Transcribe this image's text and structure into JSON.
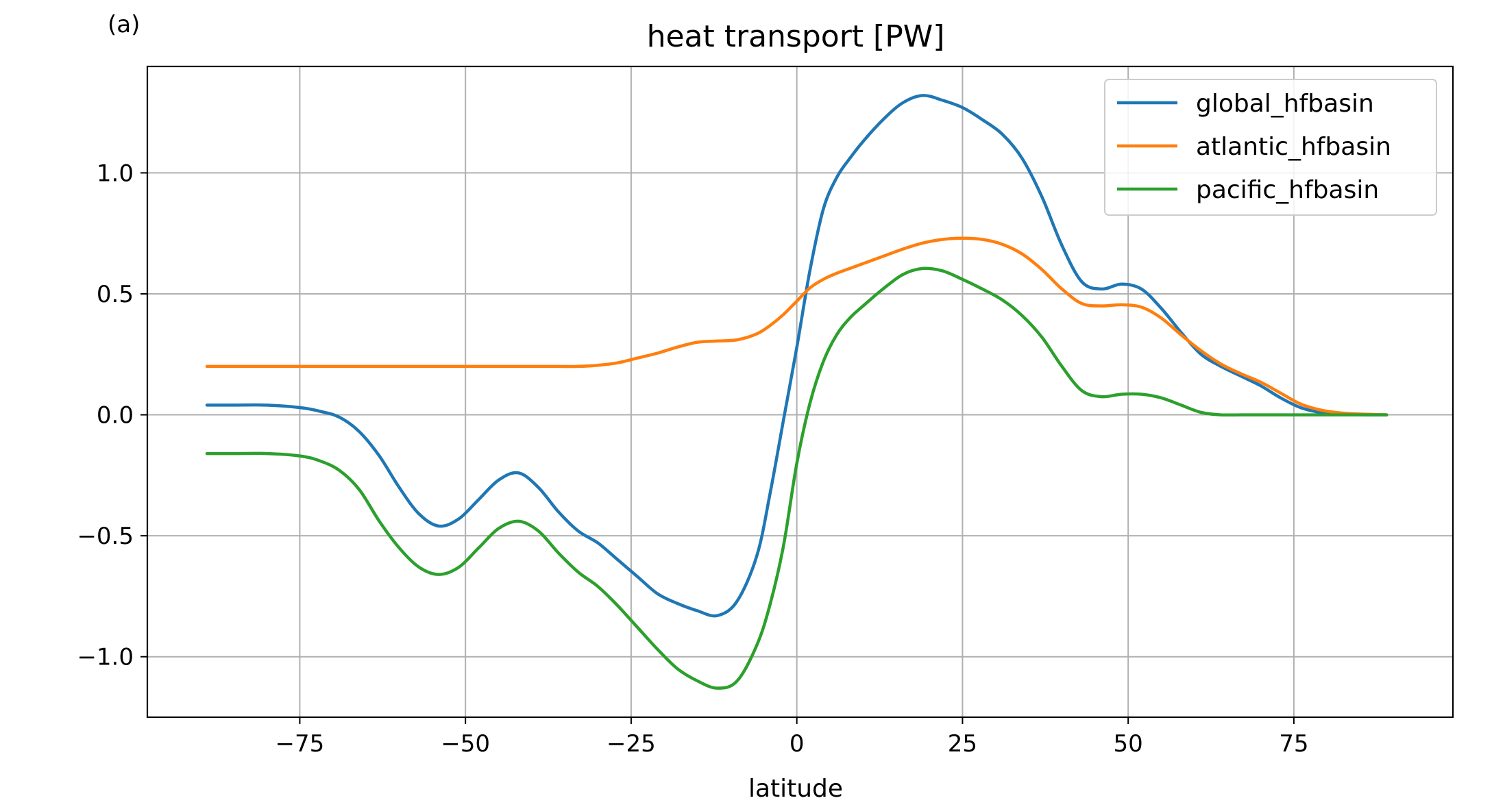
{
  "panel_label": "(a)",
  "chart_data": {
    "type": "line",
    "title": "heat transport [PW]",
    "xlabel": "latitude",
    "ylabel": "",
    "xlim": [
      -98,
      99
    ],
    "ylim": [
      -1.25,
      1.44
    ],
    "xticks": [
      -75,
      -50,
      -25,
      0,
      25,
      50,
      75
    ],
    "xtick_labels": [
      "−75",
      "−50",
      "−25",
      "0",
      "25",
      "50",
      "75"
    ],
    "yticks": [
      -1.0,
      -0.5,
      0.0,
      0.5,
      1.0
    ],
    "ytick_labels": [
      "−1.0",
      "−0.5",
      "0.0",
      "0.5",
      "1.0"
    ],
    "grid": true,
    "legend_position": "top-right",
    "x": [
      -89,
      -85,
      -80,
      -75,
      -72,
      -69,
      -66,
      -63,
      -60,
      -57,
      -54,
      -51,
      -48,
      -45,
      -42,
      -39,
      -36,
      -33,
      -30,
      -27,
      -24,
      -21,
      -18,
      -15,
      -12,
      -9,
      -6,
      -4,
      -2,
      0,
      2,
      4,
      6,
      8,
      10,
      13,
      16,
      19,
      22,
      25,
      28,
      31,
      34,
      37,
      40,
      43,
      46,
      49,
      52,
      55,
      58,
      61,
      64,
      67,
      70,
      73,
      76,
      79,
      82,
      86,
      89
    ],
    "series": [
      {
        "name": "global_hfbasin",
        "color": "#1f77b4",
        "values": [
          0.04,
          0.04,
          0.04,
          0.03,
          0.015,
          -0.01,
          -0.07,
          -0.17,
          -0.3,
          -0.41,
          -0.46,
          -0.43,
          -0.35,
          -0.27,
          -0.24,
          -0.3,
          -0.4,
          -0.48,
          -0.53,
          -0.6,
          -0.67,
          -0.74,
          -0.78,
          -0.81,
          -0.83,
          -0.77,
          -0.58,
          -0.32,
          -0.02,
          0.28,
          0.6,
          0.85,
          0.98,
          1.06,
          1.13,
          1.22,
          1.29,
          1.32,
          1.3,
          1.27,
          1.22,
          1.16,
          1.06,
          0.9,
          0.7,
          0.55,
          0.52,
          0.54,
          0.52,
          0.44,
          0.34,
          0.25,
          0.2,
          0.16,
          0.12,
          0.07,
          0.03,
          0.01,
          0.005,
          0.0,
          0.0
        ]
      },
      {
        "name": "atlantic_hfbasin",
        "color": "#ff7f0e",
        "values": [
          0.2,
          0.2,
          0.2,
          0.2,
          0.2,
          0.2,
          0.2,
          0.2,
          0.2,
          0.2,
          0.2,
          0.2,
          0.2,
          0.2,
          0.2,
          0.2,
          0.2,
          0.2,
          0.205,
          0.215,
          0.235,
          0.255,
          0.28,
          0.3,
          0.305,
          0.31,
          0.335,
          0.37,
          0.415,
          0.47,
          0.525,
          0.56,
          0.585,
          0.605,
          0.625,
          0.655,
          0.685,
          0.71,
          0.725,
          0.73,
          0.725,
          0.705,
          0.665,
          0.6,
          0.52,
          0.46,
          0.45,
          0.455,
          0.445,
          0.4,
          0.33,
          0.265,
          0.21,
          0.17,
          0.135,
          0.09,
          0.045,
          0.02,
          0.008,
          0.002,
          0.0
        ]
      },
      {
        "name": "pacific_hfbasin",
        "color": "#2ca02c",
        "values": [
          -0.16,
          -0.16,
          -0.16,
          -0.17,
          -0.19,
          -0.23,
          -0.31,
          -0.44,
          -0.55,
          -0.63,
          -0.66,
          -0.63,
          -0.55,
          -0.47,
          -0.44,
          -0.48,
          -0.57,
          -0.65,
          -0.71,
          -0.79,
          -0.88,
          -0.97,
          -1.05,
          -1.1,
          -1.13,
          -1.1,
          -0.95,
          -0.78,
          -0.54,
          -0.2,
          0.05,
          0.22,
          0.33,
          0.4,
          0.45,
          0.52,
          0.58,
          0.605,
          0.595,
          0.56,
          0.52,
          0.475,
          0.41,
          0.32,
          0.2,
          0.1,
          0.075,
          0.085,
          0.085,
          0.07,
          0.04,
          0.01,
          0.0,
          0.0,
          0.0,
          0.0,
          0.0,
          0.0,
          0.0,
          0.0,
          0.0
        ]
      }
    ]
  }
}
